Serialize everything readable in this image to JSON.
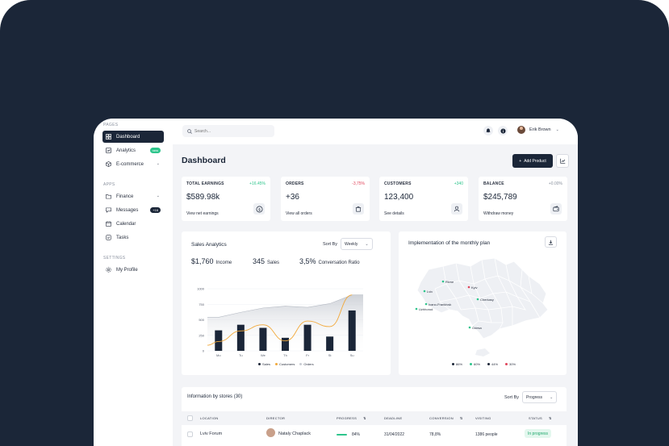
{
  "sidebar": {
    "section_pages": "PAGES",
    "section_apps": "APPS",
    "section_settings": "SETTINGS",
    "items_pages": [
      {
        "label": "Dashboard"
      },
      {
        "label": "Analytics",
        "badge": "new"
      },
      {
        "label": "E-commerce"
      }
    ],
    "items_apps": [
      {
        "label": "Finance"
      },
      {
        "label": "Messages",
        "badge": "+16"
      },
      {
        "label": "Calendar"
      },
      {
        "label": "Tasks"
      }
    ],
    "items_settings": [
      {
        "label": "My Profile"
      }
    ]
  },
  "topbar": {
    "search_placeholder": "Search...",
    "user_name": "Erik Brown"
  },
  "page": {
    "title": "Dashboard",
    "add_button": "Add Product"
  },
  "cards": [
    {
      "label": "TOTAL EARNINGS",
      "delta": "+16.45%",
      "value": "$589.98k",
      "link": "View net earnings"
    },
    {
      "label": "ORDERS",
      "delta": "-3,75%",
      "value": "+36",
      "link": "View all orders"
    },
    {
      "label": "CUSTOMERS",
      "delta": "+340",
      "value": "123,400",
      "link": "See details"
    },
    {
      "label": "BALANCE",
      "delta": "+0.00%",
      "value": "$245,789",
      "link": "Withdraw money"
    }
  ],
  "sales": {
    "title": "Sales Analytics",
    "sort_label": "Sort By",
    "sort_value": "Weekly",
    "stats": [
      {
        "value": "$1,760",
        "label": "Income"
      },
      {
        "value": "345",
        "label": "Sales"
      },
      {
        "value": "3,5%",
        "label": "Conversation Ratio"
      }
    ]
  },
  "chart_data": {
    "type": "bar",
    "categories": [
      "Mo",
      "Tu",
      "We",
      "Th",
      "Fr",
      "St",
      "Su"
    ],
    "ylim": [
      0,
      1000
    ],
    "yticks": [
      0,
      250,
      500,
      750,
      1000
    ],
    "series": [
      {
        "name": "Sales",
        "type": "bar",
        "values": [
          330,
          420,
          370,
          210,
          420,
          230,
          650
        ]
      },
      {
        "name": "Customers",
        "type": "line",
        "values": [
          150,
          320,
          420,
          160,
          480,
          390,
          900
        ]
      },
      {
        "name": "Orders",
        "type": "area",
        "values": [
          540,
          620,
          690,
          720,
          700,
          760,
          900
        ]
      }
    ]
  },
  "implementation": {
    "title": "Implementation of the monthly plan",
    "cities": [
      {
        "name": "Rivne",
        "color": "#2ec58c"
      },
      {
        "name": "Kyiv",
        "color": "#e0445a"
      },
      {
        "name": "Lviv",
        "color": "#2ec58c"
      },
      {
        "name": "Ivano-Frankivsk",
        "color": "#2ec58c"
      },
      {
        "name": "Uzhhorod",
        "color": "#2ec58c"
      },
      {
        "name": "Cherkasy",
        "color": "#2ec58c"
      },
      {
        "name": "Odesa",
        "color": "#2ec58c"
      }
    ],
    "legend": [
      {
        "label": "86%",
        "color": "#1b2638"
      },
      {
        "label": "60%",
        "color": "#2ec58c"
      },
      {
        "label": "44%",
        "color": "#1b2638"
      },
      {
        "label": "30%",
        "color": "#e0445a"
      }
    ]
  },
  "stores": {
    "title": "Information by stores (30)",
    "sort_label": "Sort By",
    "sort_value": "Progress",
    "columns": [
      "LOCATION",
      "DIRECTOR",
      "PROGRESS",
      "DEADLINE",
      "CONVERSION",
      "VISITING",
      "STATUS"
    ],
    "rows": [
      {
        "location": "Lviv Forum",
        "director": "Nataly Chaplack",
        "progress": "84%",
        "progress_value": 0.84,
        "deadline": "31/04/2022",
        "conversion": "78,8%",
        "visiting": "1386 people",
        "status": "In progress"
      }
    ]
  },
  "colors": {
    "navy": "#1b2638",
    "green": "#2ec58c",
    "red": "#e0445a",
    "orange": "#f2a93b"
  }
}
